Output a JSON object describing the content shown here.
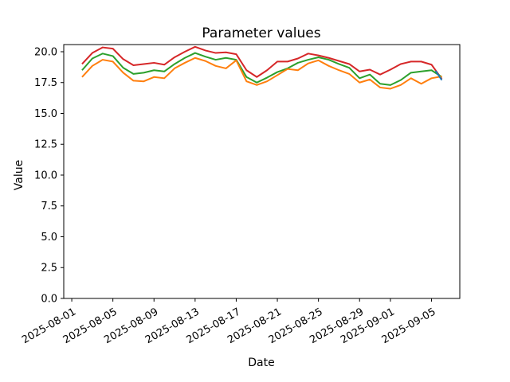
{
  "window": {
    "background": "#ffffff"
  },
  "chart_data": {
    "type": "line",
    "title": "Parameter values",
    "xlabel": "Date",
    "ylabel": "Value",
    "grid": false,
    "legend": "none",
    "ylim": [
      0,
      20.58
    ],
    "xlim_day_index": [
      -1.78,
      36.75
    ],
    "x_dates": [
      "2025-08-02",
      "2025-08-03",
      "2025-08-04",
      "2025-08-05",
      "2025-08-06",
      "2025-08-07",
      "2025-08-08",
      "2025-08-09",
      "2025-08-10",
      "2025-08-11",
      "2025-08-12",
      "2025-08-13",
      "2025-08-14",
      "2025-08-15",
      "2025-08-16",
      "2025-08-17",
      "2025-08-18",
      "2025-08-19",
      "2025-08-20",
      "2025-08-21",
      "2025-08-22",
      "2025-08-23",
      "2025-08-24",
      "2025-08-25",
      "2025-08-26",
      "2025-08-27",
      "2025-08-28",
      "2025-08-29",
      "2025-08-30",
      "2025-08-31",
      "2025-09-01",
      "2025-09-02",
      "2025-09-03",
      "2025-09-04",
      "2025-09-05",
      "2025-09-06"
    ],
    "series": [
      {
        "name": "red-line",
        "color": "#d62728",
        "values": [
          19.0,
          19.9,
          20.35,
          20.25,
          19.4,
          18.9,
          19.0,
          19.1,
          18.95,
          19.55,
          20.0,
          20.4,
          20.1,
          19.9,
          19.95,
          19.8,
          18.5,
          17.95,
          18.5,
          19.2,
          19.2,
          19.45,
          19.85,
          19.7,
          19.5,
          19.25,
          19.0,
          18.4,
          18.55,
          18.15,
          18.55,
          19.0,
          19.2,
          19.2,
          18.95,
          17.8
        ]
      },
      {
        "name": "green-line",
        "color": "#2ca02c",
        "values": [
          18.5,
          19.45,
          19.85,
          19.65,
          18.7,
          18.2,
          18.3,
          18.5,
          18.4,
          19.0,
          19.5,
          19.9,
          19.6,
          19.35,
          19.5,
          19.35,
          17.95,
          17.5,
          17.9,
          18.35,
          18.65,
          19.1,
          19.35,
          19.55,
          19.35,
          19.0,
          18.7,
          17.85,
          18.15,
          17.4,
          17.3,
          17.7,
          18.3,
          18.4,
          18.5,
          17.95
        ]
      },
      {
        "name": "orange-line",
        "color": "#ff7f0e",
        "values": [
          17.95,
          18.85,
          19.35,
          19.2,
          18.3,
          17.65,
          17.6,
          17.95,
          17.85,
          18.65,
          19.1,
          19.5,
          19.25,
          18.85,
          18.65,
          19.3,
          17.6,
          17.3,
          17.6,
          18.1,
          18.6,
          18.5,
          19.05,
          19.3,
          18.85,
          18.5,
          18.2,
          17.5,
          17.75,
          17.1,
          17.0,
          17.3,
          17.85,
          17.4,
          17.85,
          18.0
        ]
      },
      {
        "name": "blue-tail-segment",
        "color": "#1f77b4",
        "x_day_index": [
          34.4,
          35
        ],
        "values": [
          18.45,
          17.7
        ]
      }
    ],
    "x_ticks": [
      {
        "label": "2025-08-01",
        "day_index": -1
      },
      {
        "label": "2025-08-05",
        "day_index": 3
      },
      {
        "label": "2025-08-09",
        "day_index": 7
      },
      {
        "label": "2025-08-13",
        "day_index": 11
      },
      {
        "label": "2025-08-17",
        "day_index": 15
      },
      {
        "label": "2025-08-21",
        "day_index": 19
      },
      {
        "label": "2025-08-25",
        "day_index": 23
      },
      {
        "label": "2025-08-29",
        "day_index": 27
      },
      {
        "label": "2025-09-01",
        "day_index": 30
      },
      {
        "label": "2025-09-05",
        "day_index": 34
      }
    ],
    "y_ticks": [
      {
        "label": "0.0",
        "value": 0
      },
      {
        "label": "2.5",
        "value": 2.5
      },
      {
        "label": "5.0",
        "value": 5
      },
      {
        "label": "7.5",
        "value": 7.5
      },
      {
        "label": "10.0",
        "value": 10
      },
      {
        "label": "12.5",
        "value": 12.5
      },
      {
        "label": "15.0",
        "value": 15
      },
      {
        "label": "17.5",
        "value": 17.5
      },
      {
        "label": "20.0",
        "value": 20
      }
    ]
  }
}
